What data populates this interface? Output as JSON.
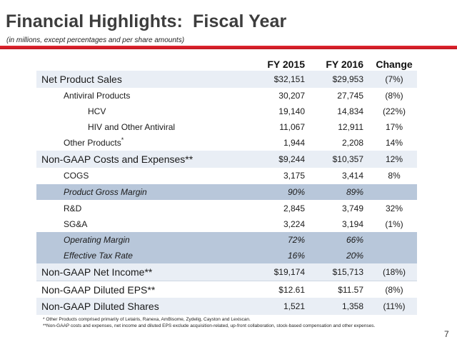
{
  "title": "Financial Highlights:  Fiscal Year",
  "subtitle": "(in millions, except percentages and per share amounts)",
  "columns": [
    "FY 2015",
    "FY 2016",
    "Change"
  ],
  "rows": [
    {
      "label": "Net Product Sales",
      "fy2015": "$32,151",
      "fy2016": "$29,953",
      "change": "(7%)"
    },
    {
      "label": "Antiviral Products",
      "fy2015": "30,207",
      "fy2016": "27,745",
      "change": "(8%)"
    },
    {
      "label": "HCV",
      "fy2015": "19,140",
      "fy2016": "14,834",
      "change": "(22%)"
    },
    {
      "label": "HIV and Other Antiviral",
      "fy2015": "11,067",
      "fy2016": "12,911",
      "change": "17%"
    },
    {
      "label": "Other Products",
      "fy2015": "1,944",
      "fy2016": "2,208",
      "change": "14%",
      "marker": "*"
    },
    {
      "label": "Non-GAAP Costs and Expenses**",
      "fy2015": "$9,244",
      "fy2016": "$10,357",
      "change": "12%"
    },
    {
      "label": "COGS",
      "fy2015": "3,175",
      "fy2016": "3,414",
      "change": "8%"
    },
    {
      "label": "Product Gross Margin",
      "fy2015": "90%",
      "fy2016": "89%",
      "change": ""
    },
    {
      "label": "R&D",
      "fy2015": "2,845",
      "fy2016": "3,749",
      "change": "32%"
    },
    {
      "label": "SG&A",
      "fy2015": "3,224",
      "fy2016": "3,194",
      "change": "(1%)"
    },
    {
      "label": "Operating Margin",
      "fy2015": "72%",
      "fy2016": "66%",
      "change": ""
    },
    {
      "label": "Effective Tax Rate",
      "fy2015": "16%",
      "fy2016": "20%",
      "change": ""
    },
    {
      "label": "Non-GAAP Net Income**",
      "fy2015": "$19,174",
      "fy2016": "$15,713",
      "change": "(18%)"
    },
    {
      "label": "Non-GAAP Diluted EPS**",
      "fy2015": "$12.61",
      "fy2016": "$11.57",
      "change": "(8%)"
    },
    {
      "label": "Non-GAAP Diluted Shares",
      "fy2015": "1,521",
      "fy2016": "1,358",
      "change": "(11%)"
    }
  ],
  "footnotes": [
    "* Other Products comprised primarily of Letairis, Ranexa, AmBisome, Zydelig, Cayston and Lexiscan.",
    "**Non-GAAP costs and expenses, net income and diluted EPS exclude acquisition-related, up-front collaboration, stock-based compensation and other expenses."
  ],
  "page_number": "7",
  "colors": {
    "accent_rule": "#d0202a",
    "row_shade": "#e9eef5",
    "margin_band": "#b8c7da"
  }
}
